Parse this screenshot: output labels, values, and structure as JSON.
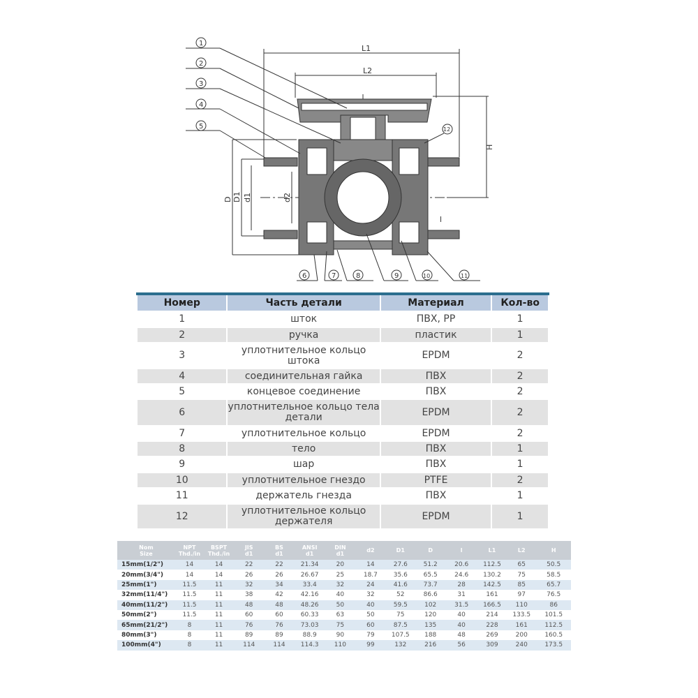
{
  "diagram": {
    "dimensions": [
      "L1",
      "L2",
      "H",
      "D",
      "D1",
      "d1",
      "d2",
      "l"
    ],
    "callouts": [
      "1",
      "2",
      "3",
      "4",
      "5",
      "6",
      "7",
      "8",
      "9",
      "10",
      "11",
      "12"
    ]
  },
  "parts_table": {
    "headers": [
      "Номер",
      "Часть детали",
      "Материал",
      "Кол-во"
    ],
    "rows": [
      [
        "1",
        "шток",
        "ПВХ, PP",
        "1"
      ],
      [
        "2",
        "ручка",
        "пластик",
        "1"
      ],
      [
        "3",
        "уплотнительное кольцо штока",
        "EPDM",
        "2"
      ],
      [
        "4",
        "соединительная гайка",
        "ПВХ",
        "2"
      ],
      [
        "5",
        "концевое соединение",
        "ПВХ",
        "2"
      ],
      [
        "6",
        "уплотнительное кольцо тела детали",
        "EPDM",
        "2"
      ],
      [
        "7",
        "уплотнительное кольцо",
        "EPDM",
        "2"
      ],
      [
        "8",
        "тело",
        "ПВХ",
        "1"
      ],
      [
        "9",
        "шар",
        "ПВХ",
        "1"
      ],
      [
        "10",
        "уплотнительное гнездо",
        "PTFE",
        "2"
      ],
      [
        "11",
        "держатель гнезда",
        "ПВХ",
        "1"
      ],
      [
        "12",
        "уплотнительное кольцо держателя",
        "EPDM",
        "1"
      ]
    ]
  },
  "dims_table": {
    "headers": [
      [
        "Nom",
        "Size"
      ],
      [
        "NPT",
        "Thd./in"
      ],
      [
        "BSPT",
        "Thd./in"
      ],
      [
        "JIS",
        "d1"
      ],
      [
        "BS",
        "d1"
      ],
      [
        "ANSI",
        "d1"
      ],
      [
        "DIN",
        "d1"
      ],
      [
        "d2",
        ""
      ],
      [
        "D1",
        ""
      ],
      [
        "D",
        ""
      ],
      [
        "l",
        ""
      ],
      [
        "L1",
        ""
      ],
      [
        "L2",
        ""
      ],
      [
        "H",
        ""
      ]
    ],
    "rows": [
      [
        "15mm(1/2\")",
        "14",
        "14",
        "22",
        "22",
        "21.34",
        "20",
        "14",
        "27.6",
        "51.2",
        "20.6",
        "112.5",
        "65",
        "50.5"
      ],
      [
        "20mm(3/4\")",
        "14",
        "14",
        "26",
        "26",
        "26.67",
        "25",
        "18.7",
        "35.6",
        "65.5",
        "24.6",
        "130.2",
        "75",
        "58.5"
      ],
      [
        "25mm(1\")",
        "11.5",
        "11",
        "32",
        "34",
        "33.4",
        "32",
        "24",
        "41.6",
        "73.7",
        "28",
        "142.5",
        "85",
        "65.7"
      ],
      [
        "32mm(11/4\")",
        "11.5",
        "11",
        "38",
        "42",
        "42.16",
        "40",
        "32",
        "52",
        "86.6",
        "31",
        "161",
        "97",
        "76.5"
      ],
      [
        "40mm(11/2\")",
        "11.5",
        "11",
        "48",
        "48",
        "48.26",
        "50",
        "40",
        "59.5",
        "102",
        "31.5",
        "166.5",
        "110",
        "86"
      ],
      [
        "50mm(2\")",
        "11.5",
        "11",
        "60",
        "60",
        "60.33",
        "63",
        "50",
        "75",
        "120",
        "40",
        "214",
        "133.5",
        "101.5"
      ],
      [
        "65mm(21/2\")",
        "8",
        "11",
        "76",
        "76",
        "73.03",
        "75",
        "60",
        "87.5",
        "135",
        "40",
        "228",
        "161",
        "112.5"
      ],
      [
        "80mm(3\")",
        "8",
        "11",
        "89",
        "89",
        "88.9",
        "90",
        "79",
        "107.5",
        "188",
        "48",
        "269",
        "200",
        "160.5"
      ],
      [
        "100mm(4\")",
        "8",
        "11",
        "114",
        "114",
        "114.3",
        "110",
        "99",
        "132",
        "216",
        "56",
        "309",
        "240",
        "173.5"
      ]
    ]
  }
}
